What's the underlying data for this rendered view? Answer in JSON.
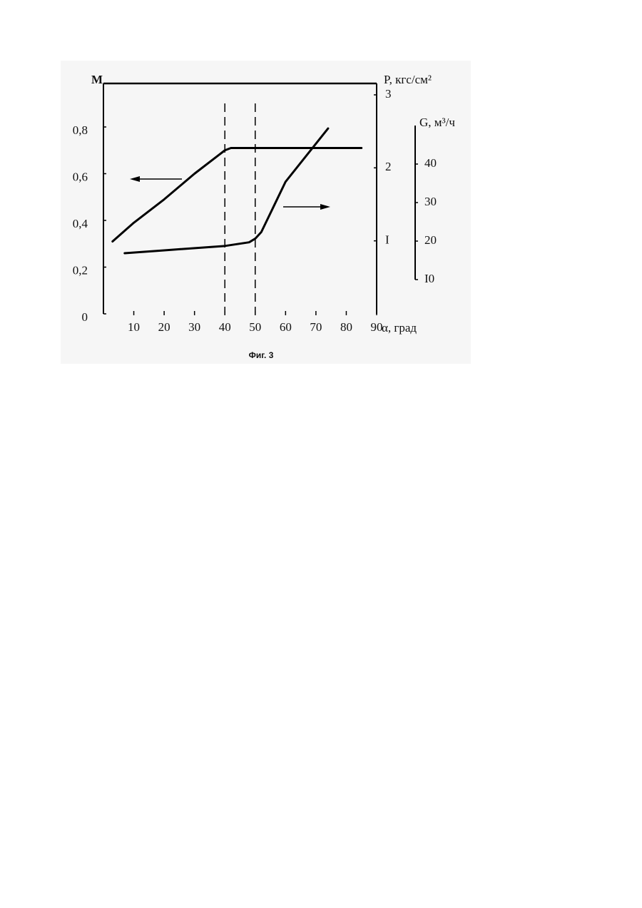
{
  "chart_data": {
    "type": "line",
    "caption": "Фиг. 3",
    "xlabel": "α, град",
    "ylabel": "M",
    "y2label": "P, кгс/см²",
    "y3label": "G, м³/ч",
    "xlim": [
      0,
      90
    ],
    "xticks": [
      10,
      20,
      30,
      40,
      50,
      60,
      70,
      80,
      90
    ],
    "ylim": [
      0,
      1
    ],
    "yticks": [
      {
        "value": 0,
        "label": "0"
      },
      {
        "value": 0.2,
        "label": "0,2"
      },
      {
        "value": 0.4,
        "label": "0,4"
      },
      {
        "value": 0.6,
        "label": "0,6"
      },
      {
        "value": 0.8,
        "label": "0,8"
      }
    ],
    "y2lim": [
      0,
      3.2
    ],
    "y2ticks": [
      {
        "value": 1,
        "label": "I"
      },
      2,
      3
    ],
    "y3lim": [
      10,
      50
    ],
    "y3ticks": [
      {
        "value": 10,
        "label": "I0"
      },
      20,
      30,
      40
    ],
    "reference_lines": [
      40,
      50
    ],
    "series": [
      {
        "color": "#000000",
        "axis": "y",
        "x": [
          3,
          10,
          20,
          30,
          38,
          40,
          42,
          50,
          60,
          70,
          85
        ],
        "values": [
          0.31,
          0.39,
          0.49,
          0.6,
          0.68,
          0.7,
          0.71,
          0.71,
          0.71,
          0.71,
          0.71
        ]
      },
      {
        "color": "#000000",
        "axis": "y2",
        "x": [
          7,
          20,
          40,
          48,
          50,
          52,
          60,
          74
        ],
        "values": [
          0.83,
          0.87,
          0.93,
          0.98,
          1.03,
          1.12,
          1.81,
          2.54
        ]
      }
    ]
  }
}
